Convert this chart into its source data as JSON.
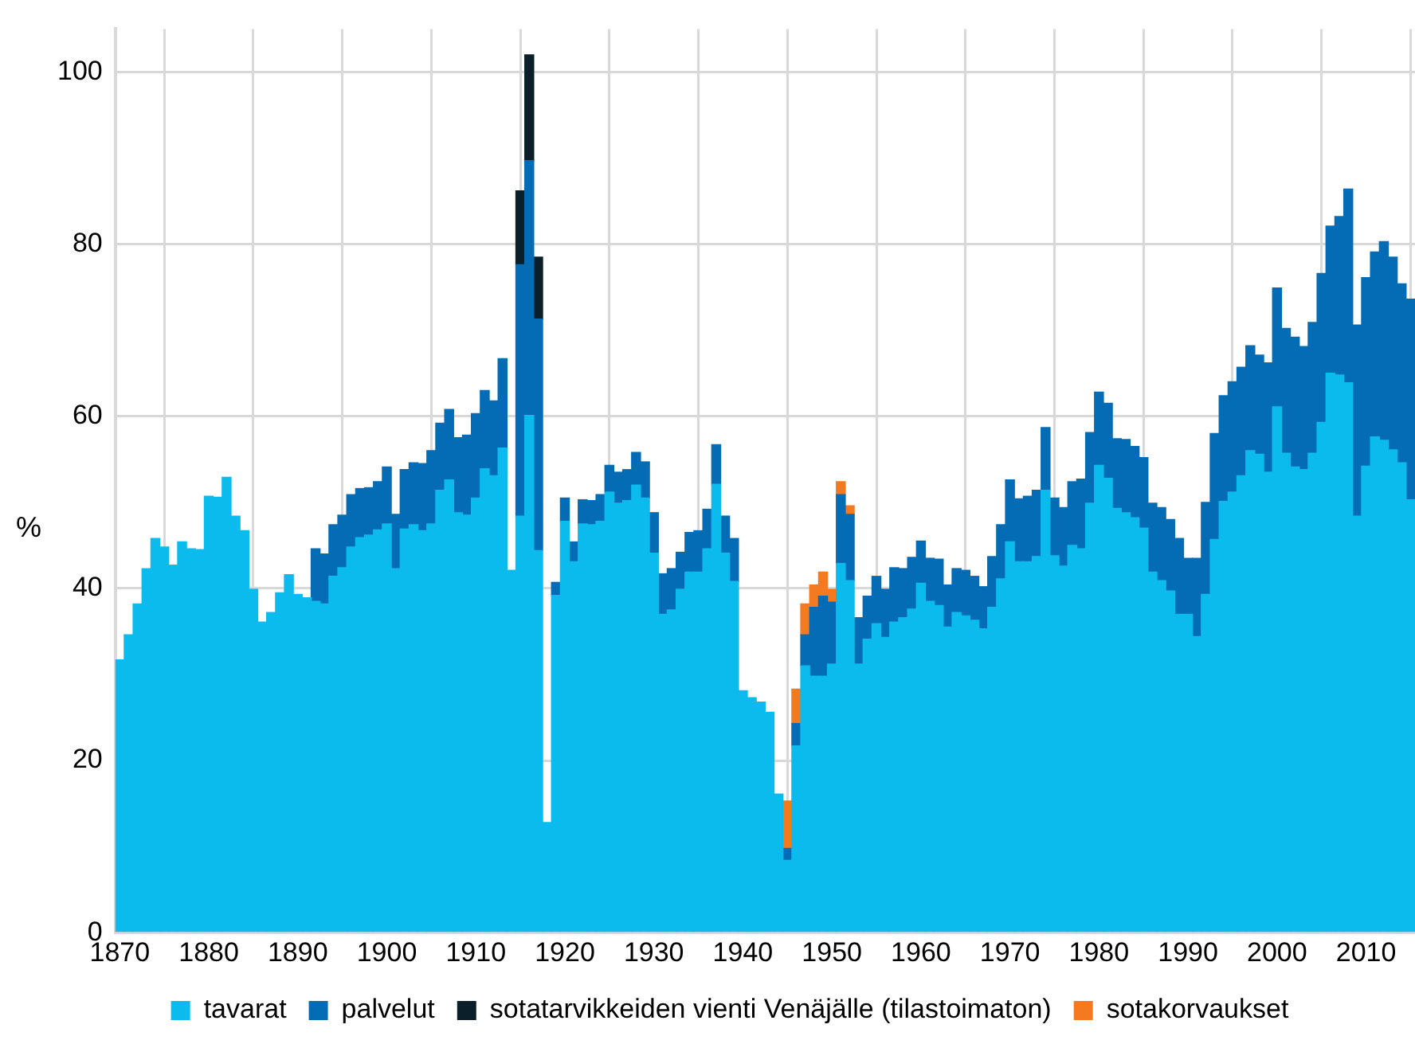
{
  "chart_data": {
    "type": "bar",
    "stacked": true,
    "ylabel": "%",
    "legend": "bottom",
    "grid": true,
    "x": [
      1870,
      1871,
      1872,
      1873,
      1874,
      1875,
      1876,
      1877,
      1878,
      1879,
      1880,
      1881,
      1882,
      1883,
      1884,
      1885,
      1886,
      1887,
      1888,
      1889,
      1890,
      1891,
      1892,
      1893,
      1894,
      1895,
      1896,
      1897,
      1898,
      1899,
      1900,
      1901,
      1902,
      1903,
      1904,
      1905,
      1906,
      1907,
      1908,
      1909,
      1910,
      1911,
      1912,
      1913,
      1914,
      1915,
      1916,
      1917,
      1918,
      1919,
      1920,
      1921,
      1922,
      1923,
      1924,
      1925,
      1926,
      1927,
      1928,
      1929,
      1930,
      1931,
      1932,
      1933,
      1934,
      1935,
      1936,
      1937,
      1938,
      1939,
      1940,
      1941,
      1942,
      1943,
      1944,
      1945,
      1946,
      1947,
      1948,
      1949,
      1950,
      1951,
      1952,
      1953,
      1954,
      1955,
      1956,
      1957,
      1958,
      1959,
      1960,
      1961,
      1962,
      1963,
      1964,
      1965,
      1966,
      1967,
      1968,
      1969,
      1970,
      1971,
      1972,
      1973,
      1974,
      1975,
      1976,
      1977,
      1978,
      1979,
      1980,
      1981,
      1982,
      1983,
      1984,
      1985,
      1986,
      1987,
      1988,
      1989,
      1990,
      1991,
      1992,
      1993,
      1994,
      1995,
      1996,
      1997,
      1998,
      1999,
      2000,
      2001,
      2002,
      2003,
      2004,
      2005,
      2006,
      2007,
      2008,
      2009,
      2010,
      2011,
      2012,
      2013,
      2014,
      2015
    ],
    "xlim": [
      1869.5,
      2015.5
    ],
    "xticks": [
      1870,
      1880,
      1890,
      1900,
      1910,
      1920,
      1930,
      1940,
      1950,
      1960,
      1970,
      1980,
      1990,
      2000,
      2010
    ],
    "ylim": [
      0,
      105
    ],
    "yticks": [
      0,
      20,
      40,
      60,
      80,
      100
    ],
    "series": [
      {
        "name": "tavarat",
        "color": "#0cbbee",
        "values": [
          31.7,
          34.6,
          38.2,
          42.3,
          45.8,
          44.8,
          42.7,
          45.4,
          44.6,
          44.5,
          50.7,
          50.6,
          52.9,
          48.4,
          46.7,
          39.9,
          36.1,
          37.2,
          39.5,
          41.6,
          39.3,
          38.9,
          38.5,
          38.2,
          41.4,
          42.4,
          44.8,
          45.9,
          46.2,
          46.8,
          47.5,
          42.3,
          46.9,
          47.4,
          46.7,
          47.5,
          51.4,
          52.6,
          48.8,
          48.5,
          50.5,
          53.9,
          53.1,
          56.3,
          42.1,
          48.4,
          60.1,
          44.4,
          12.8,
          39.2,
          47.8,
          43.1,
          47.5,
          47.4,
          47.8,
          51.2,
          49.9,
          50.2,
          52.0,
          50.5,
          44.1,
          37.0,
          37.5,
          39.9,
          41.9,
          41.9,
          44.6,
          52.1,
          44.1,
          40.8,
          28.1,
          27.3,
          26.8,
          25.6,
          16.1,
          8.4,
          21.7,
          31.0,
          29.8,
          29.8,
          31.2,
          42.9,
          40.9,
          31.2,
          34.1,
          35.9,
          34.3,
          36.1,
          36.6,
          37.6,
          40.6,
          38.5,
          38.0,
          35.5,
          37.2,
          36.8,
          36.3,
          35.3,
          37.8,
          41.1,
          45.4,
          43.1,
          43.1,
          43.7,
          51.4,
          43.8,
          42.6,
          45.0,
          44.6,
          49.9,
          54.3,
          52.8,
          49.3,
          48.8,
          48.2,
          47.0,
          41.9,
          40.9,
          39.7,
          37.0,
          37.0,
          34.4,
          39.3,
          45.7,
          50.1,
          51.2,
          53.1,
          56.0,
          55.6,
          53.5,
          61.1,
          55.7,
          54.1,
          53.8,
          55.7,
          59.3,
          65.0,
          64.8,
          63.9,
          48.4,
          54.2,
          57.6,
          57.2,
          56.1,
          54.6,
          50.3
        ]
      },
      {
        "name": "palvelut",
        "color": "#046cb4",
        "values": [
          null,
          null,
          null,
          null,
          null,
          null,
          null,
          null,
          null,
          null,
          null,
          null,
          null,
          null,
          null,
          null,
          null,
          null,
          null,
          null,
          null,
          null,
          6.1,
          5.8,
          6.0,
          6.1,
          6.1,
          5.7,
          5.5,
          5.6,
          6.6,
          6.3,
          6.9,
          7.2,
          7.8,
          8.5,
          7.8,
          8.2,
          8.7,
          9.3,
          9.8,
          9.1,
          8.7,
          10.4,
          null,
          29.2,
          29.6,
          26.9,
          null,
          1.5,
          2.7,
          2.3,
          2.8,
          2.8,
          3.1,
          3.1,
          3.6,
          3.6,
          3.8,
          4.2,
          4.7,
          4.7,
          4.8,
          4.3,
          4.6,
          4.8,
          4.6,
          4.6,
          4.3,
          5.0,
          null,
          null,
          null,
          null,
          null,
          1.4,
          2.6,
          3.6,
          8.0,
          9.3,
          7.2,
          8.0,
          7.7,
          5.4,
          5.0,
          5.5,
          5.6,
          6.3,
          5.7,
          6.0,
          4.9,
          5.0,
          5.4,
          4.9,
          5.1,
          5.3,
          5.1,
          4.9,
          5.9,
          6.3,
          7.2,
          7.3,
          7.6,
          7.7,
          7.3,
          6.7,
          6.8,
          7.4,
          8.1,
          8.2,
          8.5,
          8.7,
          8.1,
          8.5,
          8.3,
          8.2,
          8.0,
          8.5,
          8.3,
          8.8,
          6.5,
          9.1,
          10.7,
          12.3,
          12.3,
          12.8,
          12.6,
          12.2,
          11.5,
          12.7,
          13.8,
          14.5,
          15.1,
          14.3,
          15.2,
          17.3,
          17.1,
          18.4,
          22.5,
          22.2,
          21.9,
          21.5,
          23.1,
          22.4,
          20.8,
          23.3
        ]
      },
      {
        "name": "sotatarvikkeiden vienti Venäjälle (tilastoimaton)",
        "color": "#0b1f2a",
        "values": [
          null,
          null,
          null,
          null,
          null,
          null,
          null,
          null,
          null,
          null,
          null,
          null,
          null,
          null,
          null,
          null,
          null,
          null,
          null,
          null,
          null,
          null,
          null,
          null,
          null,
          null,
          null,
          null,
          null,
          null,
          null,
          null,
          null,
          null,
          null,
          null,
          null,
          null,
          null,
          null,
          null,
          null,
          null,
          null,
          null,
          8.6,
          12.3,
          7.2,
          null,
          null,
          null,
          null,
          null,
          null,
          null,
          null,
          null,
          null,
          null,
          null,
          null,
          null,
          null,
          null,
          null,
          null,
          null,
          null,
          null,
          null,
          null,
          null,
          null,
          null,
          null,
          null,
          null,
          null,
          null,
          null,
          null,
          null,
          null,
          null,
          null,
          null,
          null,
          null,
          null,
          null,
          null,
          null,
          null,
          null,
          null,
          null,
          null,
          null,
          null,
          null,
          null,
          null,
          null,
          null,
          null,
          null,
          null,
          null,
          null,
          null,
          null,
          null,
          null,
          null,
          null,
          null,
          null,
          null,
          null,
          null,
          null,
          null,
          null,
          null,
          null,
          null,
          null,
          null,
          null,
          null,
          null,
          null,
          null,
          null,
          null,
          null,
          null,
          null,
          null,
          null,
          null,
          null,
          null,
          null,
          null,
          null
        ]
      },
      {
        "name": "sotakorvaukset",
        "color": "#f47a20",
        "values": [
          null,
          null,
          null,
          null,
          null,
          null,
          null,
          null,
          null,
          null,
          null,
          null,
          null,
          null,
          null,
          null,
          null,
          null,
          null,
          null,
          null,
          null,
          null,
          null,
          null,
          null,
          null,
          null,
          null,
          null,
          null,
          null,
          null,
          null,
          null,
          null,
          null,
          null,
          null,
          null,
          null,
          null,
          null,
          null,
          null,
          null,
          null,
          null,
          null,
          null,
          null,
          null,
          null,
          null,
          null,
          null,
          null,
          null,
          null,
          null,
          null,
          null,
          null,
          null,
          null,
          null,
          null,
          null,
          null,
          null,
          null,
          null,
          null,
          null,
          null,
          5.5,
          4.0,
          3.6,
          2.6,
          2.8,
          1.5,
          1.5,
          1.0,
          null,
          null,
          null,
          null,
          null,
          null,
          null,
          null,
          null,
          null,
          null,
          null,
          null,
          null,
          null,
          null,
          null,
          null,
          null,
          null,
          null,
          null,
          null,
          null,
          null,
          null,
          null,
          null,
          null,
          null,
          null,
          null,
          null,
          null,
          null,
          null,
          null,
          null,
          null,
          null,
          null,
          null,
          null,
          null,
          null,
          null,
          null,
          null,
          null,
          null,
          null,
          null,
          null,
          null,
          null,
          null,
          null,
          null,
          null,
          null,
          null,
          null,
          null
        ]
      }
    ]
  }
}
